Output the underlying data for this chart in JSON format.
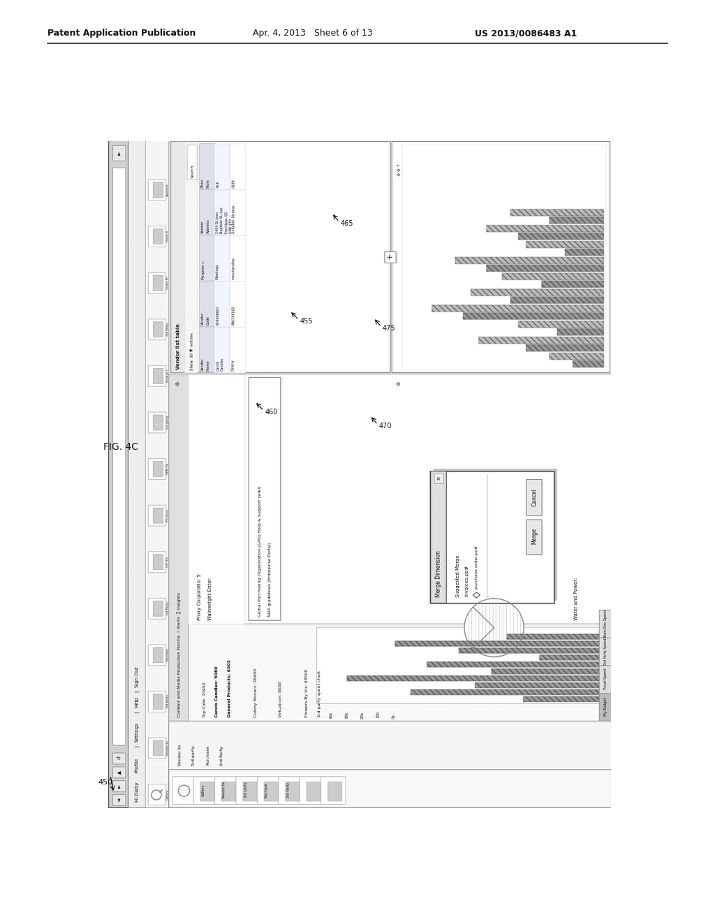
{
  "bg_color": "#ffffff",
  "header_left": "Patent Application Publication",
  "header_mid": "Apr. 4, 2013   Sheet 6 of 13",
  "header_right": "US 2013/0086483 A1",
  "fig_label": "FIG. 4C",
  "ref_450": "450",
  "ref_455": "455",
  "ref_460": "460",
  "ref_465": "465",
  "ref_470": "470",
  "ref_475": "475"
}
